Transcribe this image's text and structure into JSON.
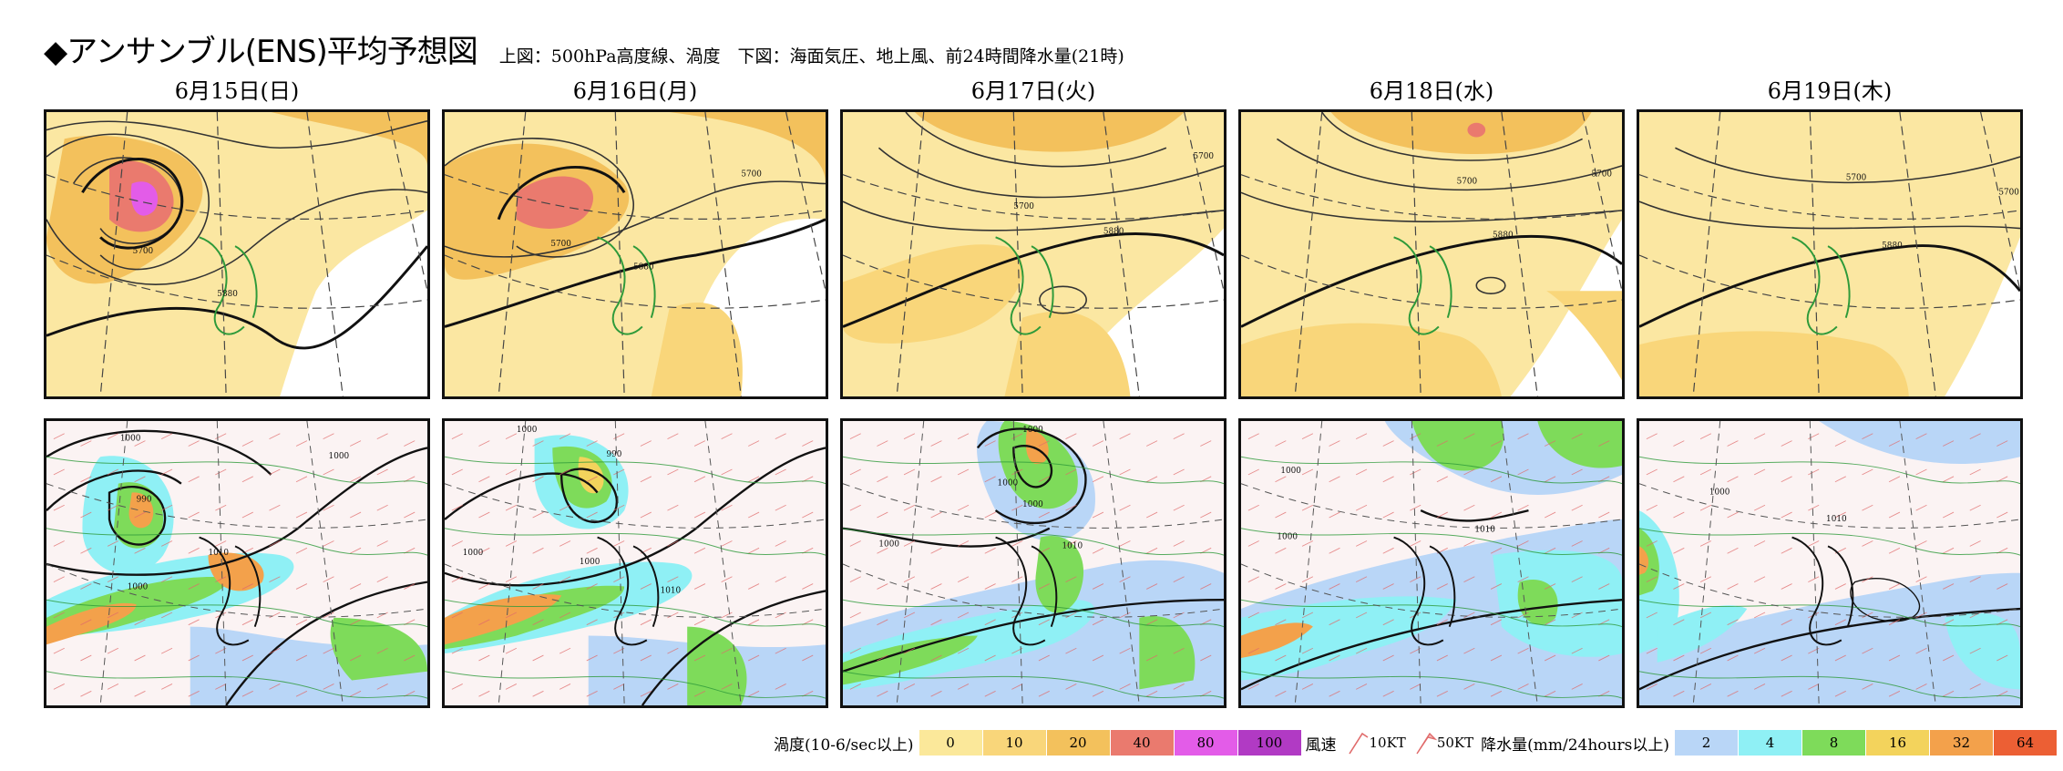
{
  "header": {
    "title": "◆アンサンブル(ENS)平均予想図",
    "subtitle": "上図：500hPa高度線、渦度　下図：海面気圧、地上風、前24時間降水量(21時)"
  },
  "days": [
    "6月15日(日)",
    "6月16日(月)",
    "6月17日(火)",
    "6月18日(水)",
    "6月19日(木)"
  ],
  "upper_contour_labels": {
    "d1": [
      "5700",
      "5880"
    ],
    "d2": [
      "5700",
      "5700",
      "5880"
    ],
    "d3": [
      "5700",
      "5700",
      "5880"
    ],
    "d4": [
      "5700",
      "5700",
      "5880"
    ],
    "d5": [
      "5700",
      "5700",
      "5880"
    ]
  },
  "lower_contour_labels": {
    "d1": [
      "1000",
      "1000",
      "990",
      "1010",
      "1000"
    ],
    "d2": [
      "1000",
      "990",
      "1000",
      "1010",
      "1000"
    ],
    "d3": [
      "1000",
      "1000",
      "1000",
      "1010",
      "1000"
    ],
    "d4": [
      "1000",
      "1000",
      "1010"
    ],
    "d5": [
      "1000",
      "1010"
    ]
  },
  "legend": {
    "vorticity_label": "渦度(10-6/sec以上)",
    "vorticity_levels": [
      {
        "v": "0",
        "c": "#fbe89a"
      },
      {
        "v": "10",
        "c": "#f9d67a"
      },
      {
        "v": "20",
        "c": "#f3c15c"
      },
      {
        "v": "40",
        "c": "#ea7a6e"
      },
      {
        "v": "80",
        "c": "#e35ce8"
      },
      {
        "v": "100",
        "c": "#b13ac4"
      }
    ],
    "wind_label": "風速",
    "wind_10kt": "10KT",
    "wind_50kt": "50KT",
    "precip_label": "降水量(mm/24hours以上)",
    "precip_levels": [
      {
        "v": "2",
        "c": "#b9d6f7"
      },
      {
        "v": "4",
        "c": "#8ff0f5"
      },
      {
        "v": "8",
        "c": "#7edb5a"
      },
      {
        "v": "16",
        "c": "#f3d35c"
      },
      {
        "v": "32",
        "c": "#f3a14b"
      },
      {
        "v": "64",
        "c": "#ec5f34"
      }
    ]
  }
}
